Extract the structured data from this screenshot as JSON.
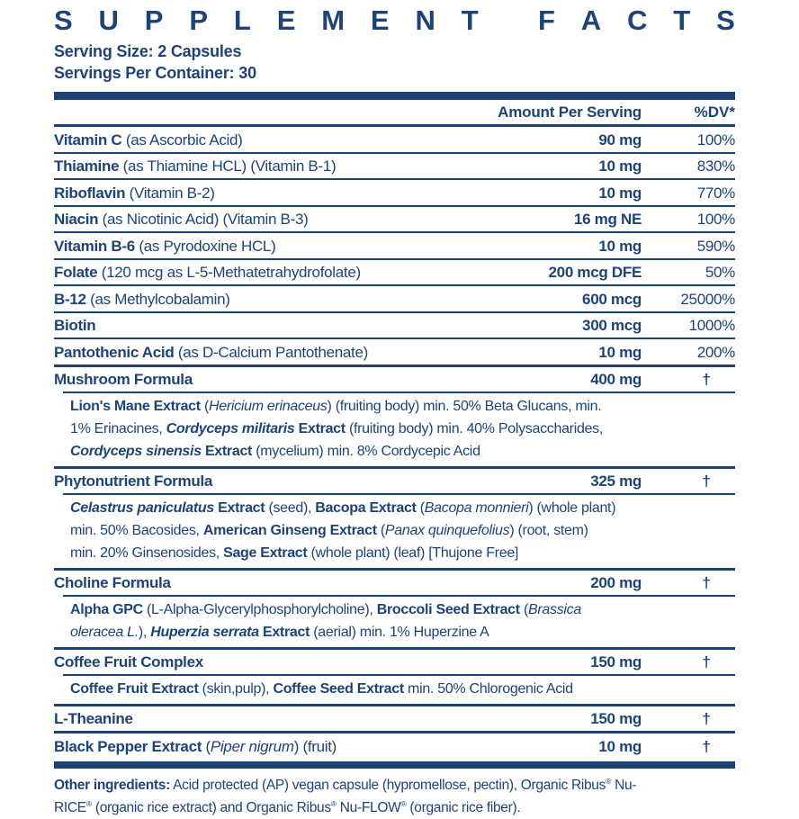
{
  "label": {
    "title": "SUPPLEMENT FACTS",
    "serving_size": "Serving Size: 2 Capsules",
    "servings_per_container": "Servings Per Container: 30",
    "columns": {
      "amount": "Amount Per Serving",
      "dv": "%DV*"
    },
    "dagger": "†",
    "colors": {
      "navy": "#1e4477",
      "background": "#ffffff"
    },
    "rows": [
      {
        "kind": "nutrient",
        "sep": "none",
        "name": "Vitamin C",
        "detail": "(as Ascorbic Acid)",
        "amount": "90 mg",
        "dv": "100%"
      },
      {
        "kind": "nutrient",
        "sep": "thin",
        "name": "Thiamine",
        "detail": "(as Thiamine HCL) (Vitamin B-1)",
        "amount": "10 mg",
        "dv": "830%"
      },
      {
        "kind": "nutrient",
        "sep": "thin",
        "name": "Riboflavin",
        "detail": "(Vitamin B-2)",
        "amount": "10 mg",
        "dv": "770%"
      },
      {
        "kind": "nutrient",
        "sep": "thin",
        "name": "Niacin",
        "detail": "(as Nicotinic Acid) (Vitamin B-3)",
        "amount": "16 mg NE",
        "dv": "100%"
      },
      {
        "kind": "nutrient",
        "sep": "thin",
        "name": "Vitamin B-6",
        "detail": "(as Pyrodoxine HCL)",
        "amount": "10 mg",
        "dv": "590%"
      },
      {
        "kind": "nutrient",
        "sep": "thin",
        "name": "Folate",
        "detail": "(120 mcg as L-5-Methatetrahydrofolate)",
        "amount": "200 mcg DFE",
        "dv": "50%"
      },
      {
        "kind": "nutrient",
        "sep": "thin",
        "name": "B-12",
        "detail": "(as Methylcobalamin)",
        "amount": "600 mcg",
        "dv": "25000%"
      },
      {
        "kind": "nutrient",
        "sep": "thin",
        "name": "Biotin",
        "detail": "",
        "amount": "300 mcg",
        "dv": "1000%"
      },
      {
        "kind": "nutrient",
        "sep": "thin",
        "name": "Pantothenic Acid",
        "detail": "(as D-Calcium Pantothenate)",
        "amount": "10 mg",
        "dv": "200%"
      },
      {
        "kind": "formula",
        "sep": "section",
        "name": "Mushroom Formula",
        "amount": "400 mg",
        "dv": "†",
        "sub": "**Lion's Mane Extract** (*Hericium erinaceus*) (fruiting body) min. 50% Beta Glucans, min.\n1% Erinacines, ***Cordyceps militaris*** **Extract** (fruiting body) min. 40% Polysaccharides,\n***Cordyceps sinensis*** **Extract** (mycelium) min. 8% Cordycepic Acid"
      },
      {
        "kind": "formula",
        "sep": "section",
        "name": "Phytonutrient Formula",
        "amount": "325 mg",
        "dv": "†",
        "sub": "***Celastrus paniculatus*** **Extract** (seed), **Bacopa Extract** (*Bacopa monnieri*) (whole plant)\nmin. 50% Bacosides, **American Ginseng Extract** (*Panax quinquefolius*) (root, stem)\nmin. 20% Ginsenosides, **Sage Extract** (whole plant) (leaf) [Thujone Free]"
      },
      {
        "kind": "formula",
        "sep": "section",
        "name": "Choline Formula",
        "amount": "200 mg",
        "dv": "†",
        "sub": "**Alpha GPC** (L-Alpha-Glycerylphosphorylcholine), **Broccoli Seed Extract** (*Brassica*\n*oleracea L.*), ***Huperzia serrata*** **Extract** (aerial) min. 1% Huperzine A"
      },
      {
        "kind": "formula",
        "sep": "section",
        "name": "Coffee Fruit Complex",
        "amount": "150 mg",
        "dv": "†",
        "sub": "**Coffee Fruit Extract** (skin,pulp), **Coffee Seed Extract** min. 50% Chlorogenic Acid"
      },
      {
        "kind": "nutrient",
        "sep": "section",
        "name": "L-Theanine",
        "detail": "",
        "amount": "150 mg",
        "dv": "†"
      },
      {
        "kind": "nutrient",
        "sep": "section",
        "name": "Black Pepper Extract",
        "detail": "(*Piper nigrum*) (fruit)",
        "amount": "10 mg",
        "dv": "†"
      }
    ],
    "other_ingredients": "**Other ingredients:** Acid protected (AP) vegan capsule (hypromellose, pectin), Organic Ribus® Nu-\nRICE® (organic rice extract) and Organic Ribus® Nu-FLOW® (organic rice fiber)."
  }
}
